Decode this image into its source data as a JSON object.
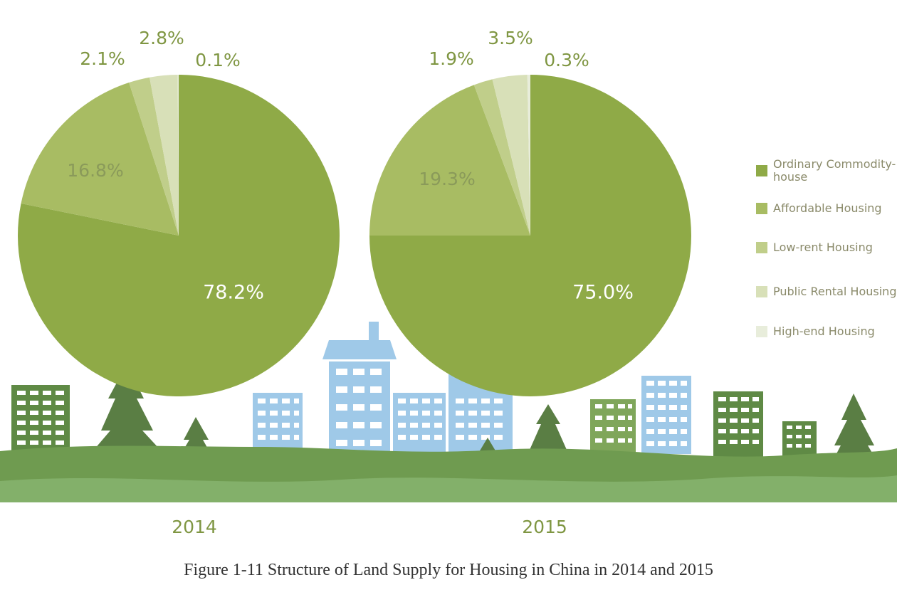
{
  "chart_data": {
    "type": "pie",
    "caption": "Figure 1-11 Structure of Land Supply for Housing in China in 2014 and 2015",
    "categories": [
      "Ordinary Commodity-house",
      "Affordable Housing",
      "Low-rent Housing",
      "Public Rental Housing",
      "High-end Housing"
    ],
    "colors": [
      "#8faa47",
      "#a8bc63",
      "#c0ce8a",
      "#d8e0b8",
      "#e8eddb"
    ],
    "pies": [
      {
        "year": "2014",
        "values": [
          78.2,
          16.8,
          2.1,
          2.8,
          0.1
        ],
        "labels": [
          "78.2%",
          "16.8%",
          "2.1%",
          "2.8%",
          "0.1%"
        ]
      },
      {
        "year": "2015",
        "values": [
          75.0,
          19.3,
          1.9,
          3.5,
          0.3
        ],
        "labels": [
          "75.0%",
          "19.3%",
          "1.9%",
          "3.5%",
          "0.3%"
        ]
      }
    ],
    "legend_position": "right"
  },
  "legend": {
    "items": [
      {
        "label": "Ordinary Commodity-house",
        "color": "#8faa47"
      },
      {
        "label": "Affordable Housing",
        "color": "#a8bc63"
      },
      {
        "label": "Low-rent Housing",
        "color": "#c0ce8a"
      },
      {
        "label": "Public Rental Housing",
        "color": "#d8e0b8"
      },
      {
        "label": "High-end Housing",
        "color": "#e8eddb"
      }
    ]
  }
}
